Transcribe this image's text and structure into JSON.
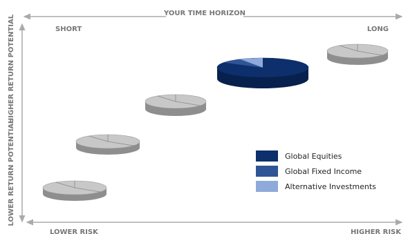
{
  "axes": {
    "top": "YOUR TIME HORIZON",
    "short": "SHORT",
    "long": "LONG",
    "left_high": "HIGHER RETURN POTENTIAL",
    "left_low": "LOWER RETURN POTENTIAL",
    "bottom_left": "LOWER RISK",
    "bottom_right": "HIGHER RISK"
  },
  "legend": [
    {
      "label": "Global Equities",
      "color": "#0d2f6b"
    },
    {
      "label": "Global Fixed Income",
      "color": "#2f5597"
    },
    {
      "label": "Alternative Investments",
      "color": "#8eaadb"
    }
  ]
}
